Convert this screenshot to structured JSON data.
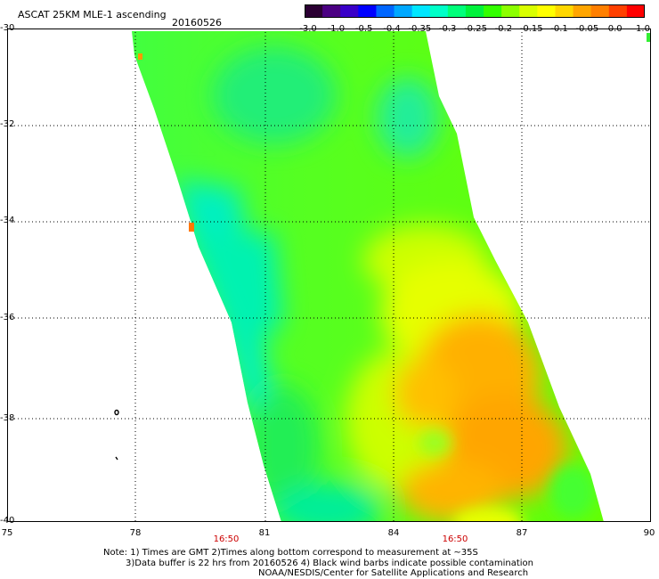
{
  "header": {
    "title": "ASCAT 25KM MLE-1 ascending",
    "date": "20160526"
  },
  "colorbar": {
    "colors": [
      "#2b0033",
      "#4b0082",
      "#3a00c8",
      "#0000ff",
      "#0066ff",
      "#00a8ff",
      "#00e6ff",
      "#00ffc8",
      "#00ff7a",
      "#00f23c",
      "#33ff00",
      "#8cff00",
      "#d9ff00",
      "#ffff00",
      "#ffd700",
      "#ffa500",
      "#ff7f00",
      "#ff4000",
      "#ff0000"
    ],
    "ticks": [
      "-3.0",
      "-1.0",
      "-0.5",
      "-0.4",
      "-0.35",
      "-0.3",
      "-0.25",
      "-0.2",
      "-0.15",
      "-0.1",
      "-0.05",
      "0.0",
      "1.0"
    ]
  },
  "map": {
    "lat_labels": [
      "-30",
      "-32",
      "-34",
      "-36",
      "-38",
      "-40"
    ],
    "lon_labels": [
      "75",
      "78",
      "81",
      "84",
      "87",
      "90"
    ],
    "time_labels": [
      "16:50",
      "16:50"
    ],
    "swath_colors": {
      "cyan": "#00f0c0",
      "green": "#22ee33",
      "lightgreen": "#66ff22",
      "yellow": "#e6ff00",
      "orange": "#ffa500"
    }
  },
  "notes": [
    "Note: 1) Times are GMT 2)Times along bottom correspond to measurement at ~35S",
    "3)Data buffer is 22 hrs from 20160526 4) Black wind barbs indicate possible contamination",
    "NOAA/NESDIS/Center for Satellite Applications and Research"
  ]
}
